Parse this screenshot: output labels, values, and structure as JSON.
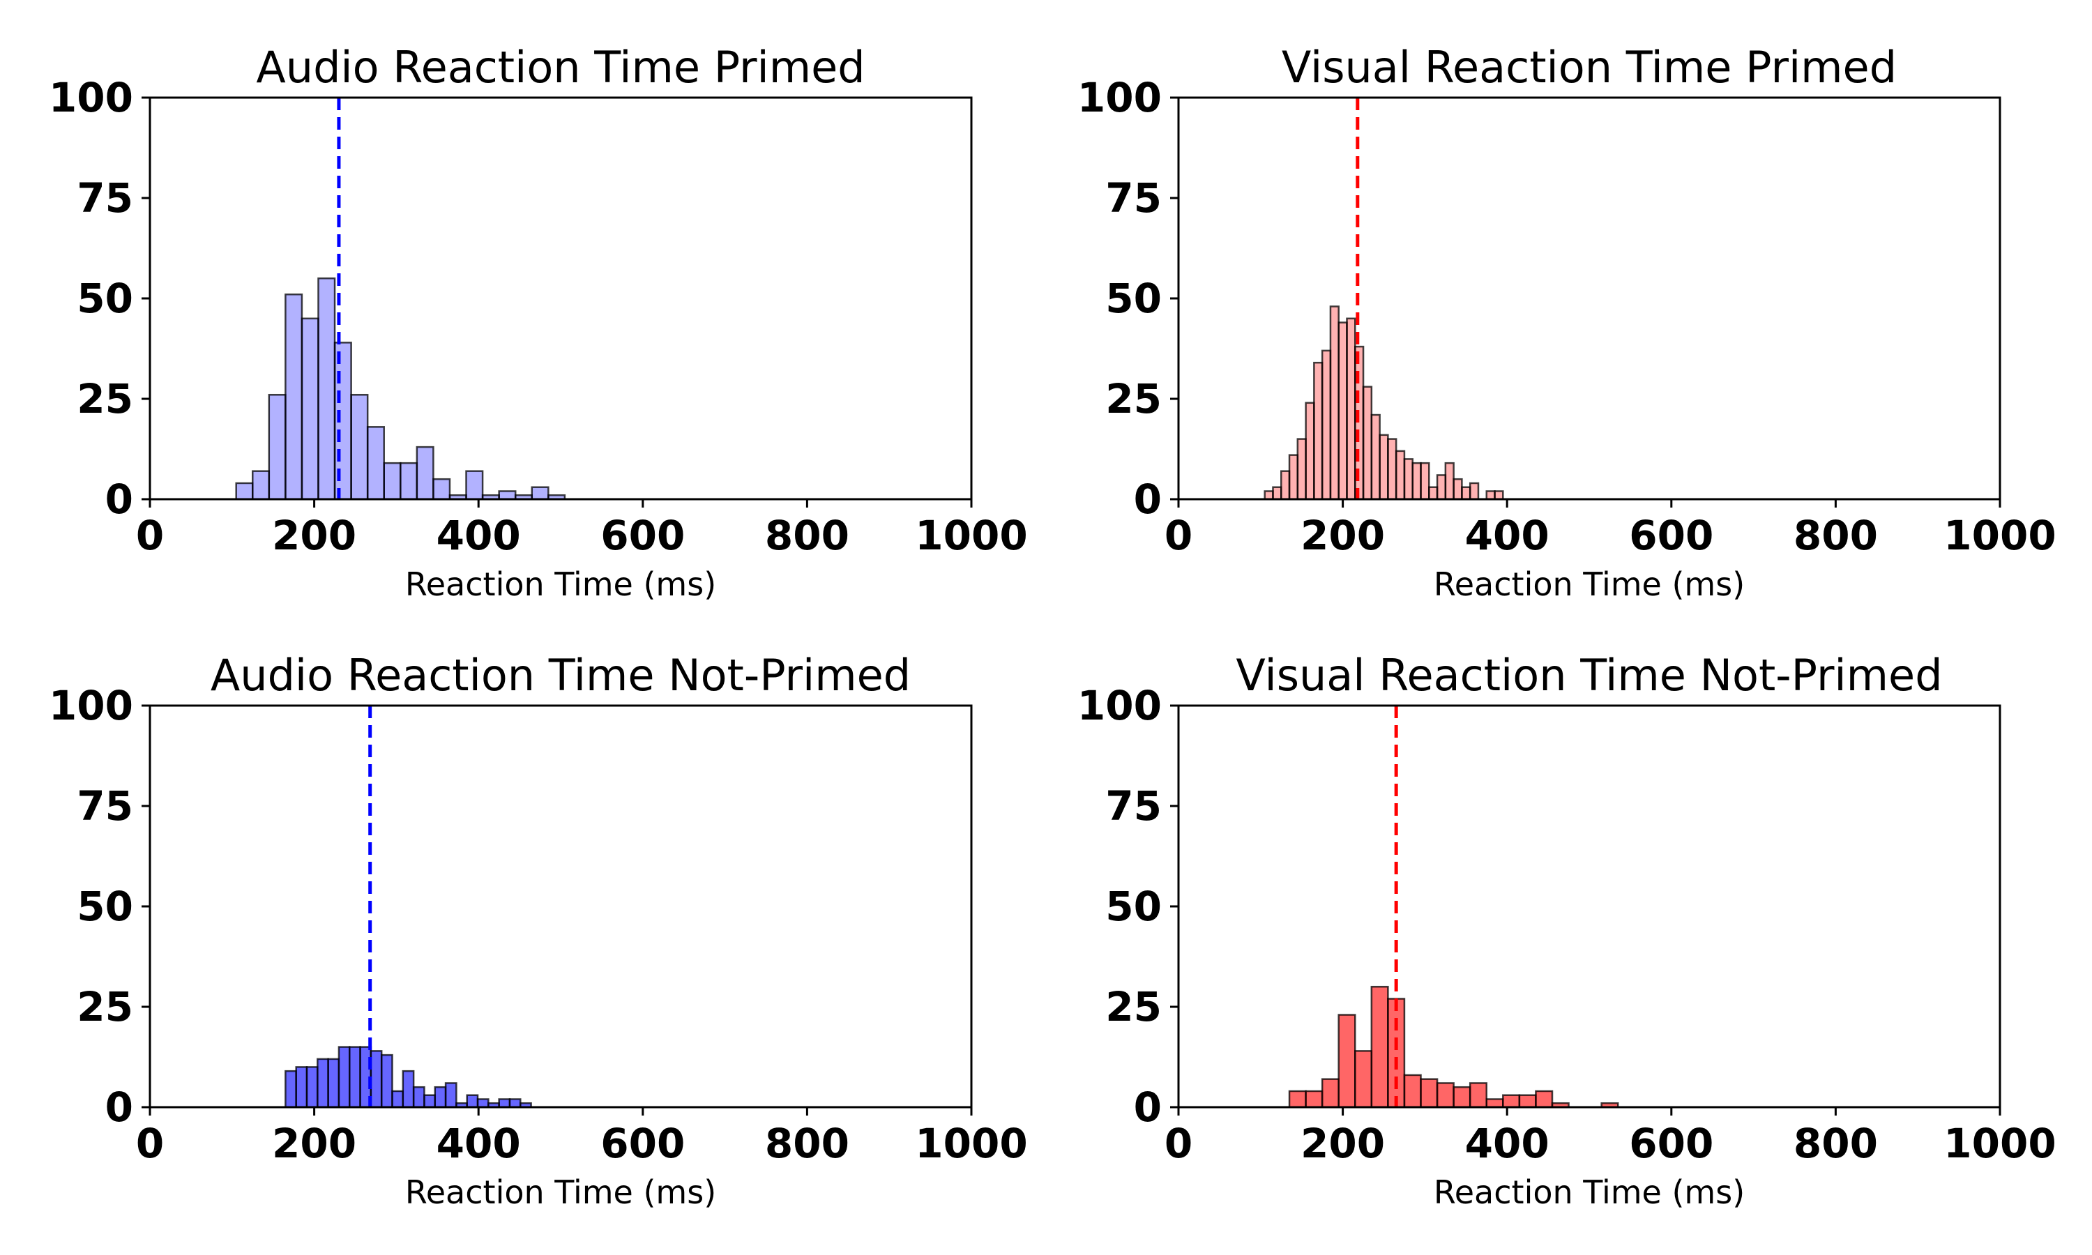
{
  "chart_data": [
    {
      "type": "histogram",
      "title": "Audio Reaction Time Primed",
      "xlabel": "Reaction Time (ms)",
      "ylabel": "",
      "xlim": [
        0,
        1000
      ],
      "ylim": [
        0,
        100
      ],
      "xticks": [
        "0",
        "200",
        "400",
        "600",
        "800",
        "1000"
      ],
      "yticks": [
        "0",
        "25",
        "50",
        "75",
        "100"
      ],
      "bin_width": 20,
      "bins_start": [
        105,
        125,
        145,
        165,
        185,
        205,
        225,
        245,
        265,
        285,
        305,
        325,
        345,
        365,
        385,
        405,
        425,
        445,
        465,
        485
      ],
      "counts": [
        4,
        7,
        26,
        51,
        45,
        55,
        39,
        26,
        18,
        9,
        9,
        13,
        5,
        1,
        7,
        1,
        2,
        1,
        3,
        1
      ],
      "mean_line": 230,
      "color": "#0000ff",
      "fill_opacity": 0.3
    },
    {
      "type": "histogram",
      "title": "Visual Reaction Time Primed",
      "xlabel": "Reaction Time (ms)",
      "ylabel": "",
      "xlim": [
        0,
        1000
      ],
      "ylim": [
        0,
        100
      ],
      "xticks": [
        "0",
        "200",
        "400",
        "600",
        "800",
        "1000"
      ],
      "yticks": [
        "0",
        "25",
        "50",
        "75",
        "100"
      ],
      "bin_width": 10,
      "bins_start": [
        105,
        115,
        125,
        135,
        145,
        155,
        165,
        175,
        185,
        195,
        205,
        215,
        225,
        235,
        245,
        255,
        265,
        275,
        285,
        295,
        305,
        315,
        325,
        335,
        345,
        355,
        365,
        375,
        385
      ],
      "counts": [
        2,
        3,
        7,
        11,
        15,
        24,
        34,
        37,
        48,
        44,
        45,
        38,
        28,
        21,
        16,
        15,
        12,
        10,
        9,
        9,
        3,
        6,
        9,
        5,
        3,
        4,
        0,
        2,
        2
      ],
      "mean_line": 218,
      "color": "#ff0000",
      "fill_opacity": 0.3
    },
    {
      "type": "histogram",
      "title": "Audio Reaction Time Not-Primed",
      "xlabel": "Reaction Time (ms)",
      "ylabel": "",
      "xlim": [
        0,
        1000
      ],
      "ylim": [
        0,
        100
      ],
      "xticks": [
        "0",
        "200",
        "400",
        "600",
        "800",
        "1000"
      ],
      "yticks": [
        "0",
        "25",
        "50",
        "75",
        "100"
      ],
      "bin_width": 13,
      "bins_start": [
        165,
        178,
        191,
        204,
        217,
        230,
        243,
        256,
        269,
        282,
        295,
        308,
        321,
        334,
        347,
        360,
        373,
        386,
        399,
        412,
        425,
        438,
        451
      ],
      "counts": [
        9,
        10,
        10,
        12,
        12,
        15,
        15,
        15,
        14,
        13,
        4,
        9,
        5,
        3,
        5,
        6,
        1,
        3,
        2,
        1,
        2,
        2,
        1
      ],
      "mean_line": 268,
      "color": "#0000ff",
      "fill_opacity": 0.6
    },
    {
      "type": "histogram",
      "title": "Visual Reaction Time Not-Primed",
      "xlabel": "Reaction Time (ms)",
      "ylabel": "",
      "xlim": [
        0,
        1000
      ],
      "ylim": [
        0,
        100
      ],
      "xticks": [
        "0",
        "200",
        "400",
        "600",
        "800",
        "1000"
      ],
      "yticks": [
        "0",
        "25",
        "50",
        "75",
        "100"
      ],
      "bin_width": 20,
      "bins_start": [
        135,
        155,
        175,
        195,
        215,
        235,
        255,
        275,
        295,
        315,
        335,
        355,
        375,
        395,
        415,
        435,
        455,
        475,
        495,
        515
      ],
      "counts": [
        4,
        4,
        7,
        23,
        14,
        30,
        27,
        8,
        7,
        6,
        5,
        6,
        2,
        3,
        3,
        4,
        1,
        0,
        0,
        1
      ],
      "mean_line": 265,
      "color": "#ff0000",
      "fill_opacity": 0.6
    }
  ]
}
